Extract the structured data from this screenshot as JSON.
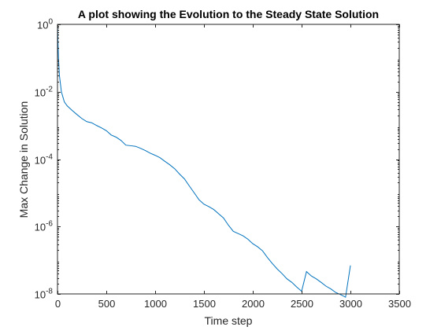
{
  "chart_data": {
    "type": "line",
    "title": "A plot showing the Evolution to the Steady State Solution",
    "xlabel": "Time step",
    "ylabel": "Max Change in Solution",
    "xlim": [
      0,
      3500
    ],
    "ylim": [
      1e-08,
      1
    ],
    "yscale": "log",
    "grid": false,
    "box": true,
    "x_ticks": [
      0,
      500,
      1000,
      1500,
      2000,
      2500,
      3000,
      3500
    ],
    "x_tick_labels": [
      "0",
      "500",
      "1000",
      "1500",
      "2000",
      "2500",
      "3000",
      "3500"
    ],
    "y_ticks": [
      1e-08,
      1e-06,
      0.0001,
      0.01,
      1
    ],
    "y_tick_labels": [
      {
        "base": "10",
        "exp": "-8"
      },
      {
        "base": "10",
        "exp": "-6"
      },
      {
        "base": "10",
        "exp": "-4"
      },
      {
        "base": "10",
        "exp": "-2"
      },
      {
        "base": "10",
        "exp": "0"
      }
    ],
    "series": [
      {
        "color": "#0072bd",
        "x": [
          1,
          5,
          10,
          20,
          40,
          70,
          100,
          150,
          200,
          250,
          300,
          350,
          400,
          450,
          500,
          550,
          600,
          650,
          700,
          750,
          800,
          850,
          900,
          950,
          1000,
          1050,
          1100,
          1150,
          1200,
          1250,
          1300,
          1350,
          1400,
          1450,
          1500,
          1550,
          1600,
          1650,
          1700,
          1750,
          1800,
          1850,
          1900,
          1950,
          2000,
          2050,
          2100,
          2150,
          2200,
          2250,
          2300,
          2350,
          2400,
          2450,
          2500,
          2550,
          2600,
          2650,
          2700,
          2750,
          2800,
          2850,
          2900,
          2950,
          3000
        ],
        "y": [
          0.9,
          0.3,
          0.1,
          0.03,
          0.01,
          0.005,
          0.0038,
          0.0028,
          0.0021,
          0.0016,
          0.0013,
          0.0012,
          0.001,
          0.00085,
          0.0007,
          0.00052,
          0.00045,
          0.00036,
          0.00026,
          0.00025,
          0.00024,
          0.00021,
          0.00018,
          0.00015,
          0.00013,
          0.00011,
          8.6e-05,
          6.8e-05,
          5.2e-05,
          3.6e-05,
          2.6e-05,
          1.6e-05,
          1e-05,
          6.2e-06,
          4.6e-06,
          3.9e-06,
          3.2e-06,
          2.4e-06,
          1.8e-06,
          1.1e-06,
          7.2e-07,
          6.2e-07,
          5.3e-07,
          4.2e-07,
          3.1e-07,
          2.5e-07,
          1.9e-07,
          1.2e-07,
          8e-08,
          5.5e-08,
          4e-08,
          2.8e-08,
          2.2e-08,
          1.6e-08,
          1.2e-08,
          4.6e-08,
          3.4e-08,
          2.8e-08,
          2.2e-08,
          1.7e-08,
          1.4e-08,
          1.1e-08,
          9.5e-09,
          8e-09,
          7e-08
        ]
      }
    ]
  }
}
